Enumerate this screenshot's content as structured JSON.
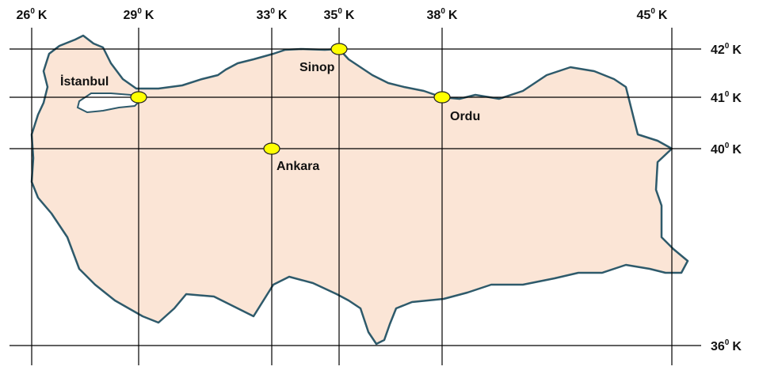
{
  "longitude_labels": [
    {
      "degree": "26",
      "sup": "0",
      "dir": "K"
    },
    {
      "degree": "29",
      "sup": "0",
      "dir": "K"
    },
    {
      "degree": "33",
      "sup": "0",
      "dir": "K"
    },
    {
      "degree": "35",
      "sup": "0",
      "dir": "K"
    },
    {
      "degree": "38",
      "sup": "0",
      "dir": "K"
    },
    {
      "degree": "45",
      "sup": "0",
      "dir": "K"
    }
  ],
  "latitude_labels": [
    {
      "degree": "42",
      "sup": "0",
      "dir": "K"
    },
    {
      "degree": "41",
      "sup": "0",
      "dir": "K"
    },
    {
      "degree": "40",
      "sup": "0",
      "dir": "K"
    },
    {
      "degree": "36",
      "sup": "0",
      "dir": "K"
    }
  ],
  "cities": [
    {
      "name": "Sinop"
    },
    {
      "name": "İstanbul"
    },
    {
      "name": "Ordu"
    },
    {
      "name": "Ankara"
    }
  ]
}
